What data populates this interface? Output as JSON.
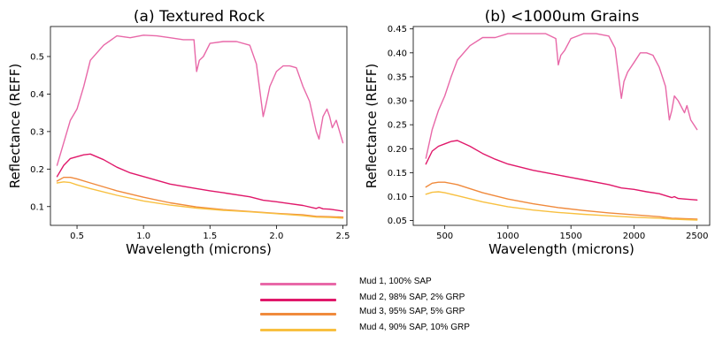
{
  "chart_data": [
    {
      "type": "line",
      "title": "(a) Textured Rock",
      "xlabel": "Wavelength (microns)",
      "ylabel": "Reflectance (REFF)",
      "xlim": [
        0.3,
        2.53
      ],
      "ylim": [
        0.05,
        0.58
      ],
      "xticks": [
        0.5,
        1.0,
        1.5,
        2.0,
        2.5
      ],
      "xtick_labels": [
        "0.5",
        "1.0",
        "1.5",
        "2.0",
        "2.5"
      ],
      "yticks": [
        0.1,
        0.2,
        0.3,
        0.4,
        0.5
      ],
      "ytick_labels": [
        "0.1",
        "0.2",
        "0.3",
        "0.4",
        "0.5"
      ],
      "grid": false,
      "series": [
        {
          "name": "Mud 1, 100% SAP",
          "color": "#e868a8",
          "x": [
            0.35,
            0.4,
            0.45,
            0.5,
            0.55,
            0.6,
            0.7,
            0.8,
            0.9,
            1.0,
            1.1,
            1.2,
            1.3,
            1.38,
            1.39,
            1.4,
            1.42,
            1.45,
            1.5,
            1.6,
            1.7,
            1.8,
            1.85,
            1.9,
            1.92,
            1.95,
            2.0,
            2.05,
            2.1,
            2.15,
            2.2,
            2.25,
            2.3,
            2.32,
            2.35,
            2.38,
            2.4,
            2.42,
            2.45,
            2.5
          ],
          "y": [
            0.21,
            0.27,
            0.33,
            0.36,
            0.42,
            0.49,
            0.53,
            0.555,
            0.55,
            0.557,
            0.555,
            0.55,
            0.545,
            0.545,
            0.5,
            0.46,
            0.49,
            0.5,
            0.535,
            0.54,
            0.54,
            0.53,
            0.48,
            0.34,
            0.37,
            0.42,
            0.46,
            0.475,
            0.475,
            0.47,
            0.42,
            0.38,
            0.3,
            0.28,
            0.34,
            0.36,
            0.34,
            0.31,
            0.33,
            0.27
          ]
        },
        {
          "name": "Mud 2, 98% SAP, 2% GRP",
          "color": "#e0186a",
          "x": [
            0.35,
            0.4,
            0.45,
            0.5,
            0.55,
            0.6,
            0.7,
            0.8,
            0.9,
            1.0,
            1.2,
            1.4,
            1.5,
            1.6,
            1.8,
            1.9,
            2.0,
            2.1,
            2.2,
            2.3,
            2.32,
            2.35,
            2.4,
            2.5
          ],
          "y": [
            0.18,
            0.21,
            0.228,
            0.233,
            0.238,
            0.24,
            0.225,
            0.205,
            0.19,
            0.18,
            0.16,
            0.148,
            0.142,
            0.137,
            0.126,
            0.117,
            0.113,
            0.108,
            0.103,
            0.095,
            0.098,
            0.094,
            0.093,
            0.088
          ]
        },
        {
          "name": "Mud 3, 95% SAP, 5% GRP",
          "color": "#f08a3c",
          "x": [
            0.35,
            0.4,
            0.45,
            0.5,
            0.6,
            0.8,
            1.0,
            1.2,
            1.4,
            1.6,
            1.8,
            2.0,
            2.2,
            2.3,
            2.4,
            2.5
          ],
          "y": [
            0.168,
            0.178,
            0.178,
            0.174,
            0.163,
            0.142,
            0.125,
            0.11,
            0.099,
            0.092,
            0.087,
            0.082,
            0.078,
            0.074,
            0.073,
            0.072
          ]
        },
        {
          "name": "Mud 4, 90% SAP, 10% GRP",
          "color": "#f8c040",
          "x": [
            0.35,
            0.4,
            0.45,
            0.5,
            0.6,
            0.8,
            1.0,
            1.2,
            1.4,
            1.6,
            1.8,
            2.0,
            2.2,
            2.3,
            2.4,
            2.5
          ],
          "y": [
            0.163,
            0.166,
            0.164,
            0.158,
            0.148,
            0.13,
            0.115,
            0.104,
            0.096,
            0.09,
            0.086,
            0.081,
            0.076,
            0.072,
            0.071,
            0.069
          ]
        }
      ]
    },
    {
      "type": "line",
      "title": "(b) <1000um Grains",
      "xlabel": "Wavelength (microns)",
      "ylabel": "Reflectance (REFF)",
      "xlim": [
        250,
        2600
      ],
      "ylim": [
        0.04,
        0.455
      ],
      "xticks": [
        500,
        1000,
        1500,
        2000,
        2500
      ],
      "xtick_labels": [
        "500",
        "1000",
        "1500",
        "2000",
        "2500"
      ],
      "yticks": [
        0.05,
        0.1,
        0.15,
        0.2,
        0.25,
        0.3,
        0.35,
        0.4,
        0.45
      ],
      "ytick_labels": [
        "0.05",
        "0.10",
        "0.15",
        "0.20",
        "0.25",
        "0.30",
        "0.35",
        "0.40",
        "0.45"
      ],
      "grid": false,
      "series": [
        {
          "name": "Mud 1, 100% SAP",
          "color": "#e868a8",
          "x": [
            350,
            400,
            450,
            500,
            550,
            600,
            700,
            800,
            900,
            1000,
            1100,
            1200,
            1300,
            1380,
            1400,
            1420,
            1450,
            1500,
            1600,
            1700,
            1800,
            1850,
            1900,
            1920,
            1950,
            2000,
            2050,
            2100,
            2150,
            2200,
            2250,
            2280,
            2300,
            2320,
            2350,
            2400,
            2420,
            2450,
            2500
          ],
          "y": [
            0.18,
            0.24,
            0.28,
            0.31,
            0.35,
            0.385,
            0.415,
            0.432,
            0.432,
            0.44,
            0.44,
            0.44,
            0.44,
            0.43,
            0.375,
            0.395,
            0.405,
            0.43,
            0.44,
            0.44,
            0.435,
            0.41,
            0.305,
            0.34,
            0.36,
            0.38,
            0.4,
            0.4,
            0.395,
            0.37,
            0.33,
            0.26,
            0.28,
            0.31,
            0.3,
            0.275,
            0.29,
            0.26,
            0.24
          ]
        },
        {
          "name": "Mud 2, 98% SAP, 2% GRP",
          "color": "#e0186a",
          "x": [
            350,
            400,
            450,
            500,
            550,
            600,
            700,
            800,
            900,
            1000,
            1200,
            1400,
            1500,
            1600,
            1800,
            1900,
            2000,
            2100,
            2200,
            2300,
            2320,
            2350,
            2400,
            2500
          ],
          "y": [
            0.168,
            0.195,
            0.205,
            0.21,
            0.215,
            0.217,
            0.205,
            0.19,
            0.178,
            0.168,
            0.155,
            0.145,
            0.14,
            0.135,
            0.125,
            0.118,
            0.115,
            0.11,
            0.106,
            0.098,
            0.1,
            0.096,
            0.095,
            0.093
          ]
        },
        {
          "name": "Mud 3, 95% SAP, 5% GRP",
          "color": "#f08a3c",
          "x": [
            350,
            400,
            450,
            500,
            600,
            800,
            1000,
            1200,
            1400,
            1600,
            1800,
            2000,
            2200,
            2300,
            2400,
            2500
          ],
          "y": [
            0.12,
            0.128,
            0.13,
            0.13,
            0.125,
            0.108,
            0.095,
            0.085,
            0.077,
            0.071,
            0.066,
            0.062,
            0.058,
            0.055,
            0.054,
            0.053
          ]
        },
        {
          "name": "Mud 4, 90% SAP, 10% GRP",
          "color": "#f8c040",
          "x": [
            350,
            400,
            450,
            500,
            600,
            800,
            1000,
            1200,
            1400,
            1600,
            1800,
            2000,
            2200,
            2300,
            2400,
            2500
          ],
          "y": [
            0.105,
            0.109,
            0.11,
            0.108,
            0.102,
            0.089,
            0.079,
            0.072,
            0.067,
            0.063,
            0.06,
            0.057,
            0.055,
            0.053,
            0.052,
            0.051
          ]
        }
      ]
    }
  ],
  "legend": {
    "placement": "bottom-center",
    "items": [
      {
        "label": "Mud 1, 100% SAP",
        "color": "#e868a8"
      },
      {
        "label": "Mud 2, 98% SAP, 2% GRP",
        "color": "#e0186a"
      },
      {
        "label": "Mud 3, 95% SAP, 5% GRP",
        "color": "#f08a3c"
      },
      {
        "label": "Mud 4, 90% SAP, 10% GRP",
        "color": "#f8c040"
      }
    ]
  }
}
